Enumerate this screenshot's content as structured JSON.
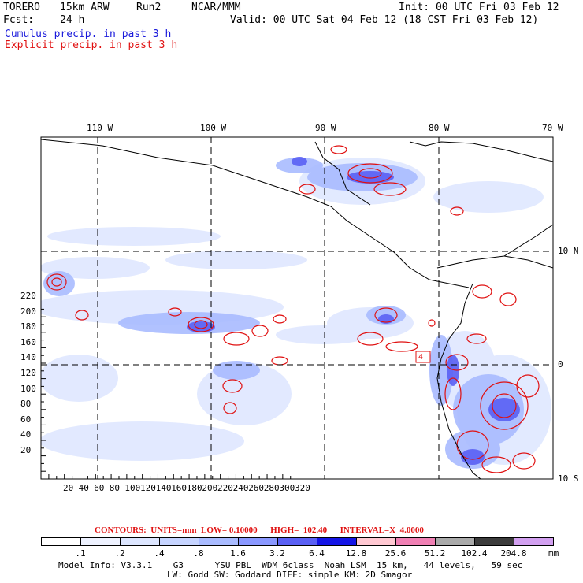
{
  "header": {
    "model": "TORERO",
    "resolution": "15km ARW",
    "run": "Run2",
    "org": "NCAR/MMM",
    "init": "Init: 00 UTC Fri 03 Feb 12",
    "fcst_label": "Fcst:",
    "fcst_value": "24 h",
    "valid": "Valid: 00 UTC Sat 04 Feb 12 (18 CST Fri 03 Feb 12)",
    "field1": "Cumulus precip. in past 3 h",
    "field2": "Explicit precip. in past 3 h"
  },
  "map": {
    "top_lon_labels": [
      "110 W",
      "100 W",
      "90 W",
      "80 W",
      "70 W"
    ],
    "right_lat_labels": [
      "10 N",
      "0",
      "10 S"
    ],
    "y_ticks": [
      "20",
      "40",
      "60",
      "80",
      "100",
      "120",
      "140",
      "160",
      "180",
      "200",
      "220"
    ],
    "x_ticks": [
      "20",
      "40",
      "60",
      "80",
      "100",
      "120",
      "140",
      "160",
      "180",
      "200",
      "220",
      "240",
      "260",
      "280",
      "300",
      "320"
    ],
    "box_label": "4"
  },
  "contours": {
    "text": "CONTOURS:  UNITS=mm  LOW= 0.10000      HIGH=  102.40      INTERVAL=X  4.0000"
  },
  "colorbar": {
    "unit": "mm",
    "labels": [
      ".1",
      ".2",
      ".4",
      ".8",
      "1.6",
      "3.2",
      "6.4",
      "12.8",
      "25.6",
      "51.2",
      "102.4",
      "204.8"
    ],
    "colors": [
      "#ffffff",
      "#eef2ff",
      "#dde6ff",
      "#c6d4ff",
      "#a9bbff",
      "#8a98ff",
      "#5a60f4",
      "#1414e6",
      "#ffc8d2",
      "#f080b4",
      "#aaaaaa",
      "#3c3c3c",
      "#d2a0f0"
    ]
  },
  "footer": {
    "line1": "Model Info: V3.3.1    G3      YSU PBL  WDM 6class  Noah LSM  15 km,   44 levels,   59 sec",
    "line2": "LW: Godd SW: Goddard DIFF: simple KM: 2D Smagor"
  }
}
